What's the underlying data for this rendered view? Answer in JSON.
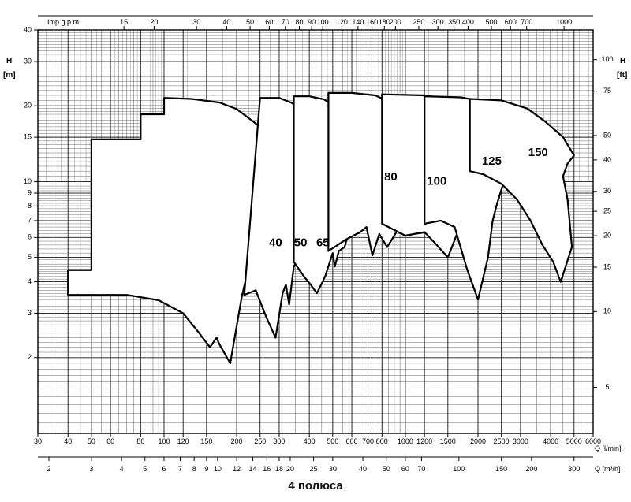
{
  "chart_data": {
    "type": "area",
    "caption": "4 полюса",
    "top_axis": {
      "label": "Imp.g.p.m.",
      "ticks": [
        "15",
        "20",
        "30",
        "40",
        "50",
        "60",
        "70",
        "80",
        "90",
        "100",
        "120",
        "140",
        "160",
        "180",
        "200",
        "250",
        "300",
        "350",
        "400",
        "500",
        "600",
        "700",
        "1000"
      ],
      "tick_values": [
        15,
        20,
        30,
        40,
        50,
        60,
        70,
        80,
        90,
        100,
        120,
        140,
        160,
        180,
        200,
        250,
        300,
        350,
        400,
        500,
        600,
        700,
        1000
      ]
    },
    "x_axis": {
      "label": "Q [l/min]",
      "scale": "log",
      "range": [
        30,
        6000
      ],
      "ticks": [
        "30",
        "40",
        "50",
        "60",
        "80",
        "100",
        "120",
        "150",
        "200",
        "250",
        "300",
        "400",
        "500",
        "600",
        "700",
        "800",
        "1000",
        "1200",
        "1500",
        "2000",
        "2500",
        "3000",
        "4000",
        "5000",
        "6000"
      ],
      "tick_values": [
        30,
        40,
        50,
        60,
        80,
        100,
        120,
        150,
        200,
        250,
        300,
        400,
        500,
        600,
        700,
        800,
        1000,
        1200,
        1500,
        2000,
        2500,
        3000,
        4000,
        5000,
        6000
      ]
    },
    "x2_axis": {
      "label": "Q [m³/h]",
      "ticks": [
        "2",
        "3",
        "4",
        "5",
        "6",
        "7",
        "8",
        "9",
        "10",
        "12",
        "14",
        "16",
        "18",
        "20",
        "25",
        "30",
        "40",
        "50",
        "60",
        "70",
        "100",
        "150",
        "200",
        "300"
      ],
      "tick_values": [
        2,
        3,
        4,
        5,
        6,
        7,
        8,
        9,
        10,
        12,
        14,
        16,
        18,
        20,
        25,
        30,
        40,
        50,
        60,
        70,
        100,
        150,
        200,
        300
      ]
    },
    "y_axis": {
      "label": "H [m]",
      "scale": "log",
      "range": [
        1,
        40
      ],
      "ticks": [
        "2",
        "3",
        "4",
        "5",
        "6",
        "7",
        "8",
        "9",
        "10",
        "15",
        "20",
        "30",
        "40"
      ],
      "tick_values": [
        2,
        3,
        4,
        5,
        6,
        7,
        8,
        9,
        10,
        15,
        20,
        30,
        40
      ]
    },
    "y2_axis": {
      "label": "H [ft]",
      "ticks": [
        "5",
        "10",
        "15",
        "20",
        "25",
        "30",
        "40",
        "50",
        "75",
        "100"
      ],
      "tick_values": [
        5,
        10,
        15,
        20,
        25,
        30,
        40,
        50,
        75,
        100
      ]
    },
    "grid": true,
    "series": [
      {
        "name": "40",
        "label_at": [
          290,
          5.7
        ],
        "points": [
          [
            40,
            3.55
          ],
          [
            40,
            4.45
          ],
          [
            50,
            4.45
          ],
          [
            50,
            14.7
          ],
          [
            80,
            14.7
          ],
          [
            80,
            18.5
          ],
          [
            100,
            18.5
          ],
          [
            100,
            21.5
          ],
          [
            130,
            21.3
          ],
          [
            170,
            20.6
          ],
          [
            200,
            19.4
          ],
          [
            250,
            16.5
          ],
          [
            280,
            13.8
          ],
          [
            300,
            11.5
          ],
          [
            290,
            10.4
          ],
          [
            280,
            8.9
          ],
          [
            262,
            7.8
          ],
          [
            238,
            5.8
          ],
          [
            210,
            3.5
          ],
          [
            188,
            1.9
          ],
          [
            170,
            2.25
          ],
          [
            165,
            2.4
          ],
          [
            155,
            2.2
          ],
          [
            140,
            2.5
          ],
          [
            120,
            3.0
          ],
          [
            95,
            3.38
          ],
          [
            70,
            3.55
          ],
          [
            40,
            3.55
          ]
        ]
      },
      {
        "name": "50",
        "label_at": [
          368,
          5.7
        ],
        "points": [
          [
            250,
            21.5
          ],
          [
            300,
            21.5
          ],
          [
            340,
            20.5
          ],
          [
            380,
            18.5
          ],
          [
            430,
            14.5
          ],
          [
            460,
            11.7
          ],
          [
            450,
            10.4
          ],
          [
            410,
            8.3
          ],
          [
            380,
            5.5
          ],
          [
            345,
            4.6
          ],
          [
            330,
            3.25
          ],
          [
            320,
            3.9
          ],
          [
            310,
            3.6
          ],
          [
            290,
            2.4
          ],
          [
            265,
            2.9
          ],
          [
            240,
            3.7
          ],
          [
            215,
            3.55
          ],
          [
            250,
            21.5
          ]
        ]
      },
      {
        "name": "65",
        "label_at": [
          455,
          5.7
        ],
        "points": [
          [
            345,
            21.8
          ],
          [
            400,
            21.8
          ],
          [
            460,
            21.2
          ],
          [
            550,
            19.0
          ],
          [
            610,
            16.5
          ],
          [
            680,
            14.2
          ],
          [
            720,
            11.8
          ],
          [
            680,
            10.5
          ],
          [
            620,
            7.8
          ],
          [
            560,
            5.5
          ],
          [
            530,
            5.3
          ],
          [
            510,
            4.6
          ],
          [
            500,
            5.2
          ],
          [
            465,
            4.2
          ],
          [
            430,
            3.6
          ],
          [
            405,
            3.9
          ],
          [
            380,
            4.2
          ],
          [
            345,
            4.8
          ],
          [
            345,
            21.8
          ]
        ]
      },
      {
        "name": "80",
        "label_at": [
          870,
          10.4
        ],
        "points": [
          [
            480,
            22.5
          ],
          [
            600,
            22.5
          ],
          [
            750,
            22.0
          ],
          [
            900,
            20.3
          ],
          [
            1100,
            17.2
          ],
          [
            1300,
            14.7
          ],
          [
            1400,
            12.0
          ],
          [
            1300,
            11.2
          ],
          [
            1150,
            9.5
          ],
          [
            1000,
            7.4
          ],
          [
            900,
            6.1
          ],
          [
            840,
            5.5
          ],
          [
            780,
            6.2
          ],
          [
            730,
            5.1
          ],
          [
            690,
            6.6
          ],
          [
            650,
            6.3
          ],
          [
            570,
            5.9
          ],
          [
            480,
            5.3
          ],
          [
            480,
            22.5
          ]
        ]
      },
      {
        "name": "100",
        "label_at": [
          1350,
          10.0
        ],
        "points": [
          [
            800,
            22.2
          ],
          [
            1200,
            22.0
          ],
          [
            1500,
            21.2
          ],
          [
            1800,
            19.2
          ],
          [
            2100,
            16.5
          ],
          [
            2300,
            13.5
          ],
          [
            2200,
            12.3
          ],
          [
            2000,
            10.0
          ],
          [
            1850,
            8.5
          ],
          [
            1700,
            6.8
          ],
          [
            1500,
            5.0
          ],
          [
            1350,
            5.6
          ],
          [
            1200,
            6.3
          ],
          [
            1000,
            6.1
          ],
          [
            800,
            6.8
          ],
          [
            800,
            22.2
          ]
        ]
      },
      {
        "name": "125",
        "label_at": [
          2280,
          12.0
        ],
        "points": [
          [
            1200,
            21.8
          ],
          [
            1700,
            21.6
          ],
          [
            2100,
            20.8
          ],
          [
            2500,
            19.0
          ],
          [
            2900,
            16.5
          ],
          [
            3100,
            14.0
          ],
          [
            2900,
            13.0
          ],
          [
            2600,
            10.5
          ],
          [
            2400,
            8.2
          ],
          [
            2300,
            7.0
          ],
          [
            2200,
            5.0
          ],
          [
            2000,
            3.4
          ],
          [
            1800,
            4.5
          ],
          [
            1600,
            6.6
          ],
          [
            1400,
            7.0
          ],
          [
            1200,
            6.8
          ],
          [
            1200,
            21.8
          ]
        ]
      },
      {
        "name": "150",
        "label_at": [
          3550,
          13.0
        ],
        "points": [
          [
            1850,
            21.3
          ],
          [
            2500,
            21.0
          ],
          [
            3200,
            19.5
          ],
          [
            3800,
            17.3
          ],
          [
            4500,
            15.0
          ],
          [
            5000,
            12.7
          ],
          [
            4700,
            11.8
          ],
          [
            4500,
            10.5
          ],
          [
            4700,
            8.5
          ],
          [
            4900,
            5.5
          ],
          [
            4400,
            4.0
          ],
          [
            4100,
            4.8
          ],
          [
            3700,
            5.6
          ],
          [
            3300,
            7.0
          ],
          [
            2900,
            8.5
          ],
          [
            2500,
            9.8
          ],
          [
            2100,
            10.7
          ],
          [
            1850,
            11.0
          ],
          [
            1850,
            21.3
          ]
        ]
      }
    ]
  }
}
